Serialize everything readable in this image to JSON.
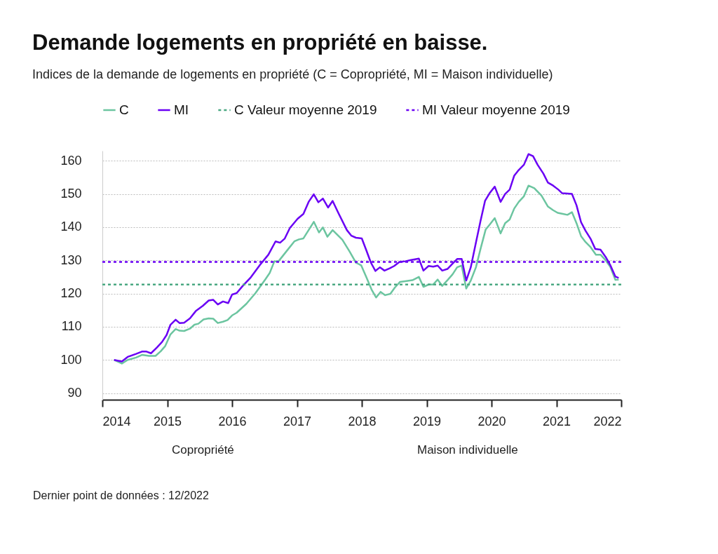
{
  "chart_data": {
    "type": "line",
    "title": "Demande logements en propriété en baisse.",
    "subtitle": "Indices de la demande de logements en propriété (C = Copropriété, MI = Maison individuelle)",
    "xlim": [
      2014,
      2022
    ],
    "xticks": [
      2014,
      2015,
      2016,
      2017,
      2018,
      2019,
      2020,
      2021,
      2022
    ],
    "ylim": [
      88,
      163
    ],
    "yticks": [
      90,
      100,
      110,
      120,
      130,
      140,
      150,
      160
    ],
    "grid": "y",
    "legend": "top left",
    "line_style": "solid",
    "marker": "none",
    "series": [
      {
        "name": "C",
        "color": "#6cc5a0",
        "x": [
          2014.18,
          2014.3,
          2014.39,
          2014.52,
          2014.61,
          2014.72,
          2014.82,
          2014.9,
          2014.97,
          2015.05,
          2015.13,
          2015.19,
          2015.26,
          2015.35,
          2015.42,
          2015.48,
          2015.56,
          2015.64,
          2015.71,
          2015.78,
          2015.86,
          2015.93,
          2016.0,
          2016.07,
          2016.22,
          2016.36,
          2016.51,
          2016.58,
          2016.65,
          2016.72,
          2016.87,
          2016.96,
          2017.03,
          2017.1,
          2017.18,
          2017.26,
          2017.34,
          2017.4,
          2017.47,
          2017.55,
          2017.7,
          2017.81,
          2017.91,
          2017.99,
          2018.07,
          2018.15,
          2018.22,
          2018.29,
          2018.36,
          2018.44,
          2018.51,
          2018.59,
          2018.67,
          2018.78,
          2018.88,
          2018.95,
          2019.03,
          2019.1,
          2019.17,
          2019.24,
          2019.32,
          2019.4,
          2019.47,
          2019.54,
          2019.61,
          2019.68,
          2019.76,
          2019.83,
          2019.91,
          2019.97,
          2020.05,
          2020.14,
          2020.21,
          2020.28,
          2020.35,
          2020.42,
          2020.5,
          2020.57,
          2020.66,
          2020.77,
          2020.87,
          2020.95,
          2021.02,
          2021.1,
          2021.17,
          2021.24,
          2021.31,
          2021.38,
          2021.45,
          2021.53,
          2021.61,
          2021.68,
          2021.76,
          2021.83,
          2021.91,
          2021.96
        ],
        "values": [
          100.0,
          98.9,
          100.0,
          100.7,
          101.5,
          101.2,
          101.2,
          102.6,
          104.2,
          107.7,
          109.3,
          108.8,
          108.7,
          109.4,
          110.6,
          110.9,
          112.2,
          112.5,
          112.4,
          111.1,
          111.5,
          112.0,
          113.4,
          114.2,
          116.9,
          120.1,
          124.2,
          126.2,
          129.6,
          129.8,
          133.5,
          135.7,
          136.3,
          136.6,
          139.1,
          141.6,
          138.4,
          139.9,
          137.1,
          139.1,
          136.2,
          132.7,
          129.3,
          128.5,
          124.9,
          121.2,
          118.8,
          120.5,
          119.5,
          119.9,
          121.8,
          123.5,
          123.7,
          124.0,
          125.0,
          122.0,
          122.7,
          122.7,
          124.2,
          122.3,
          124.0,
          125.8,
          127.9,
          128.4,
          121.5,
          123.9,
          127.9,
          133.4,
          139.3,
          140.7,
          142.7,
          138.1,
          141.2,
          142.3,
          145.6,
          147.6,
          149.3,
          152.5,
          151.7,
          149.5,
          146.2,
          145.1,
          144.3,
          144.0,
          143.7,
          144.5,
          141.2,
          137.3,
          135.5,
          133.9,
          131.7,
          131.7,
          130.0,
          128.1,
          124.1,
          124.2
        ]
      },
      {
        "name": "MI",
        "color": "#6a00f4",
        "x": [
          2014.18,
          2014.3,
          2014.39,
          2014.52,
          2014.61,
          2014.68,
          2014.75,
          2014.84,
          2014.92,
          2014.99,
          2015.05,
          2015.13,
          2015.19,
          2015.26,
          2015.35,
          2015.44,
          2015.55,
          2015.64,
          2015.71,
          2015.78,
          2015.86,
          2015.94,
          2016.0,
          2016.07,
          2016.16,
          2016.29,
          2016.43,
          2016.56,
          2016.67,
          2016.74,
          2016.81,
          2016.89,
          2017.01,
          2017.1,
          2017.18,
          2017.26,
          2017.33,
          2017.4,
          2017.48,
          2017.55,
          2017.64,
          2017.77,
          2017.84,
          2017.91,
          2018.0,
          2018.07,
          2018.14,
          2018.21,
          2018.28,
          2018.35,
          2018.43,
          2018.5,
          2018.58,
          2018.67,
          2018.76,
          2018.88,
          2018.95,
          2019.03,
          2019.1,
          2019.17,
          2019.24,
          2019.32,
          2019.4,
          2019.47,
          2019.54,
          2019.61,
          2019.68,
          2019.76,
          2019.83,
          2019.9,
          2019.97,
          2020.05,
          2020.14,
          2020.21,
          2020.28,
          2020.35,
          2020.41,
          2020.5,
          2020.57,
          2020.64,
          2020.71,
          2020.8,
          2020.87,
          2020.95,
          2021.03,
          2021.09,
          2021.17,
          2021.24,
          2021.31,
          2021.38,
          2021.45,
          2021.53,
          2021.6,
          2021.68,
          2021.76,
          2021.83,
          2021.91,
          2021.96
        ],
        "values": [
          100.0,
          99.5,
          100.9,
          101.8,
          102.5,
          102.5,
          102.0,
          103.7,
          105.4,
          107.5,
          110.6,
          112.1,
          111.1,
          111.2,
          112.5,
          114.7,
          116.3,
          117.9,
          118.1,
          116.7,
          117.6,
          117.1,
          119.7,
          120.1,
          122.2,
          124.9,
          128.6,
          131.7,
          135.7,
          135.3,
          136.5,
          139.7,
          142.5,
          144.0,
          147.6,
          149.9,
          147.5,
          148.6,
          145.9,
          147.9,
          144.2,
          139.1,
          137.4,
          136.8,
          136.6,
          133.0,
          129.3,
          126.8,
          127.9,
          126.9,
          127.6,
          128.3,
          129.5,
          129.7,
          130.1,
          130.5,
          126.9,
          128.3,
          128.1,
          128.4,
          126.9,
          127.4,
          129.0,
          130.4,
          130.4,
          123.9,
          127.9,
          135.4,
          141.8,
          147.9,
          150.2,
          152.2,
          147.6,
          150.0,
          151.3,
          155.5,
          157.0,
          158.8,
          162.0,
          161.4,
          158.8,
          156.1,
          153.4,
          152.5,
          151.3,
          150.2,
          150.1,
          150.0,
          146.6,
          141.5,
          138.9,
          136.4,
          133.4,
          133.2,
          131.0,
          128.6,
          125.1,
          124.7
        ]
      }
    ],
    "ref_lines": [
      {
        "axis": "y",
        "value": 122.7,
        "label": "C Valeur moyenne 2019",
        "color": "#4aa882",
        "line_style": "dashed"
      },
      {
        "axis": "y",
        "value": 129.5,
        "label": "MI Valeur moyenne 2019",
        "color": "#6a00f4",
        "line_style": "dashed"
      }
    ],
    "annotations": [
      "Copropriété",
      "Maison individuelle",
      "Dernier point de données : 12/2022"
    ]
  }
}
